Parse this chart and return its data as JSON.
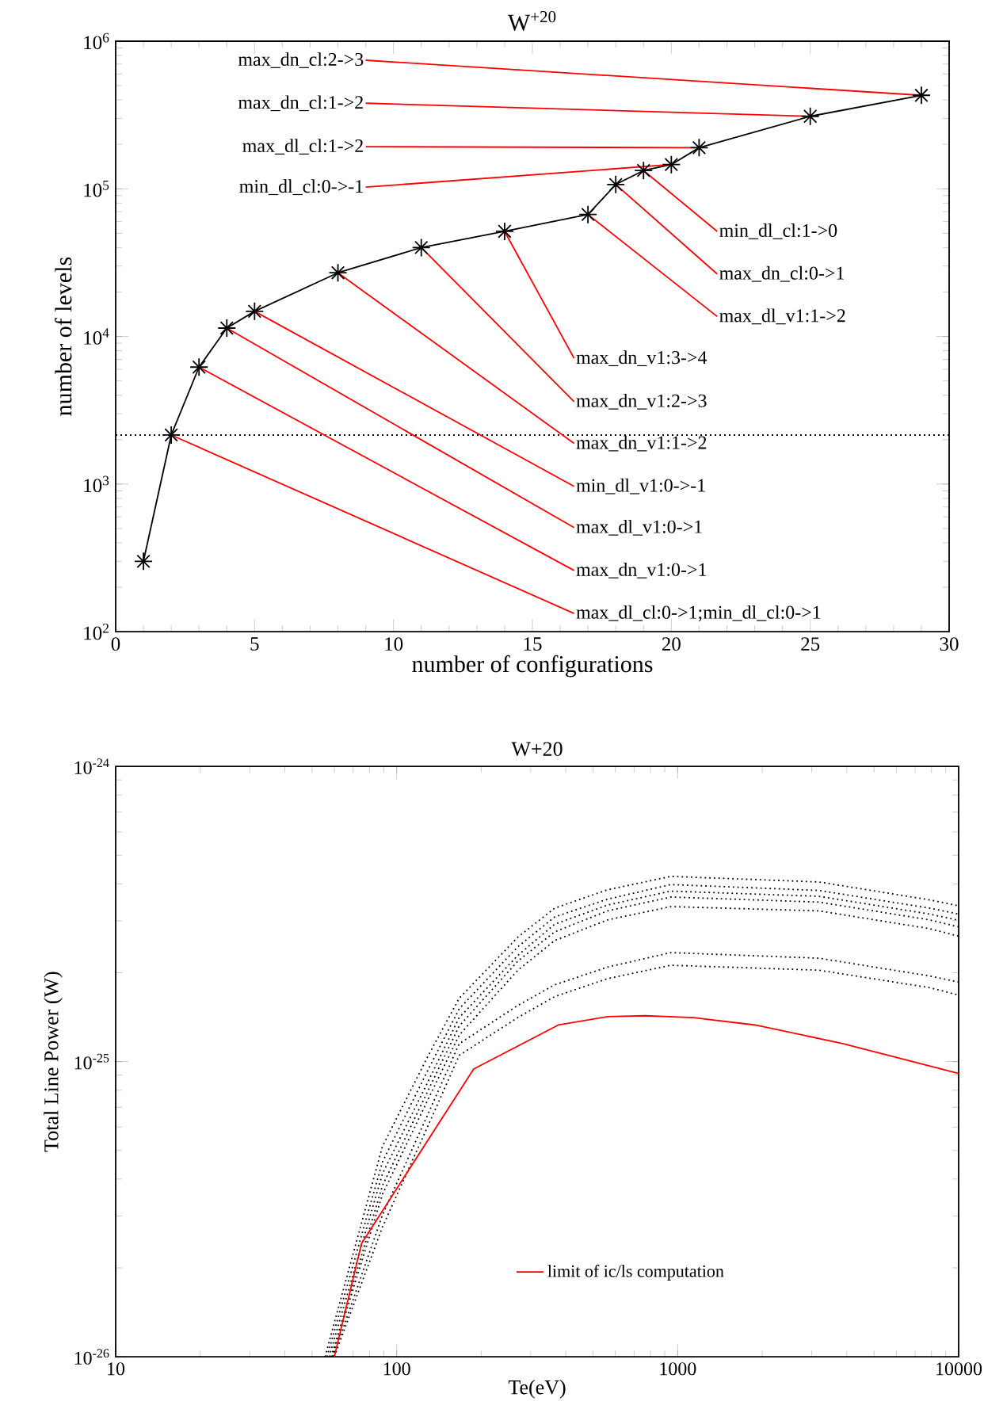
{
  "chart_data": [
    {
      "type": "line",
      "title": "W$^{+20}$",
      "xlabel": "number of configurations",
      "ylabel": "number of levels",
      "log": "y",
      "marker": "cross",
      "line_style": "solid",
      "x": [
        1,
        2,
        3,
        4,
        5,
        8,
        11,
        14,
        17,
        18,
        19,
        20,
        21,
        25,
        29
      ],
      "series": [
        {
          "color": "#000000",
          "values": [
            300,
            2150,
            6200,
            11400,
            14800,
            27000,
            40000,
            51500,
            67000,
            107000,
            133000,
            146000,
            190000,
            310000,
            430000
          ]
        }
      ],
      "xlim": [
        0,
        30
      ],
      "xticks": [
        0,
        5,
        10,
        15,
        20,
        25,
        30
      ],
      "ylim": [
        100,
        1000000
      ],
      "yticks": [
        {
          "value": 100,
          "label": "10$^{2}$"
        },
        {
          "value": 1000,
          "label": "10$^{3}$"
        },
        {
          "value": 10000,
          "label": "10$^{4}$"
        },
        {
          "value": 100000,
          "label": "10$^{5}$"
        },
        {
          "value": 1000000,
          "label": "10$^{6}$"
        }
      ],
      "ref_lines": [
        {
          "axis": "y",
          "value": 2150,
          "color": "#000000",
          "line_style": "dotted"
        }
      ],
      "annotations": [
        {
          "text": "max_dn_cl:2->3",
          "x": 29,
          "y": 430000
        },
        {
          "text": "max_dn_cl:1->2",
          "x": 25,
          "y": 310000
        },
        {
          "text": "max_dl_cl:1->2",
          "x": 21,
          "y": 190000
        },
        {
          "text": "min_dl_cl:0->-1",
          "x": 20,
          "y": 146000
        },
        {
          "text": "min_dl_cl:1->0",
          "x": 19,
          "y": 133000
        },
        {
          "text": "max_dn_cl:0->1",
          "x": 18,
          "y": 107000
        },
        {
          "text": "max_dl_v1:1->2",
          "x": 17,
          "y": 67000
        },
        {
          "text": "max_dn_v1:3->4",
          "x": 14,
          "y": 51500
        },
        {
          "text": "max_dn_v1:2->3",
          "x": 11,
          "y": 40000
        },
        {
          "text": "max_dn_v1:1->2",
          "x": 8,
          "y": 27000
        },
        {
          "text": "min_dl_v1:0->-1",
          "x": 5,
          "y": 14800
        },
        {
          "text": "max_dl_v1:0->1",
          "x": 4,
          "y": 11400
        },
        {
          "text": "max_dn_v1:0->1",
          "x": 3,
          "y": 6200
        },
        {
          "text": "max_dl_cl:0->1;min_dl_cl:0->1",
          "x": 2,
          "y": 2150
        }
      ]
    },
    {
      "type": "line",
      "title": "W+20",
      "xlabel": "Te(eV)",
      "ylabel": "Total Line Power (W)",
      "log": "xy",
      "marker": "none",
      "legend": "bottom",
      "series": [
        {
          "color": "#000000",
          "line_style": "dotted",
          "x": [
            55.6,
            89,
            129,
            167,
            270,
            365,
            563,
            946,
            3184,
            7890,
            10000
          ],
          "values": [
            1e-26,
            5.16e-26,
            1.04e-25,
            1.64e-25,
            2.64e-25,
            3.31e-25,
            3.82e-25,
            4.24e-25,
            4.06e-25,
            3.53e-25,
            3.37e-25
          ]
        },
        {
          "color": "#000000",
          "line_style": "dotted",
          "x": [
            56.5,
            89,
            129,
            167,
            270,
            365,
            563,
            946,
            3184,
            7890,
            10000
          ],
          "values": [
            1e-26,
            4.57e-26,
            9.33e-26,
            1.51e-25,
            2.45e-25,
            3.09e-25,
            3.55e-25,
            3.98e-25,
            3.8e-25,
            3.31e-25,
            3.16e-25
          ]
        },
        {
          "color": "#000000",
          "line_style": "dotted",
          "x": [
            57.5,
            89,
            129,
            167,
            270,
            365,
            563,
            946,
            3184,
            7890,
            10000
          ],
          "values": [
            1e-26,
            4.17e-26,
            8.51e-26,
            1.41e-25,
            2.29e-25,
            2.92e-25,
            3.39e-25,
            3.78e-25,
            3.63e-25,
            3.16e-25,
            3.01e-25
          ]
        },
        {
          "color": "#000000",
          "line_style": "dotted",
          "x": [
            58.5,
            89,
            129,
            167,
            270,
            365,
            563,
            946,
            3184,
            7890,
            10000
          ],
          "values": [
            1e-26,
            3.8e-26,
            7.94e-26,
            1.32e-25,
            2.19e-25,
            2.75e-25,
            3.24e-25,
            3.61e-25,
            3.47e-25,
            3.02e-25,
            2.86e-25
          ]
        },
        {
          "color": "#000000",
          "line_style": "dotted",
          "x": [
            59,
            89,
            129,
            167,
            270,
            365,
            563,
            946,
            3184,
            7890,
            10000
          ],
          "values": [
            1e-26,
            3.55e-26,
            7.41e-26,
            1.23e-25,
            2.04e-25,
            2.57e-25,
            3.02e-25,
            3.35e-25,
            3.24e-25,
            2.82e-25,
            2.66e-25
          ]
        },
        {
          "color": "#000000",
          "line_style": "dotted",
          "x": [
            59.5,
            89,
            129,
            167,
            270,
            365,
            563,
            946,
            3184,
            7890,
            10000
          ],
          "values": [
            1e-26,
            3.02e-26,
            6.61e-26,
            1.15e-25,
            1.55e-25,
            1.82e-25,
            2.09e-25,
            2.34e-25,
            2.24e-25,
            1.95e-25,
            1.86e-25
          ]
        },
        {
          "color": "#000000",
          "line_style": "dotted",
          "x": [
            60,
            89,
            129,
            167,
            270,
            365,
            563,
            946,
            3184,
            7890,
            10000
          ],
          "values": [
            1e-26,
            2.75e-26,
            6.03e-26,
            1.05e-25,
            1.41e-25,
            1.66e-25,
            1.91e-25,
            2.12e-25,
            2.04e-25,
            1.78e-25,
            1.68e-25
          ]
        },
        {
          "name": "limit of ic/ls computation",
          "color": "#ff0000",
          "line_style": "solid",
          "x": [
            60,
            75,
            188,
            376,
            564,
            766,
            1138,
            1888,
            3890,
            10000
          ],
          "values": [
            1e-26,
            2.42e-26,
            9.44e-26,
            1.33e-25,
            1.42e-25,
            1.43e-25,
            1.41e-25,
            1.33e-25,
            1.15e-25,
            9.12e-26
          ]
        }
      ],
      "xlim": [
        10,
        10000
      ],
      "xticks": [
        10,
        100,
        1000,
        10000
      ],
      "ylim": [
        1e-26,
        1e-24
      ],
      "yticks": [
        {
          "value": 1e-26,
          "label": "10$^{-26}$"
        },
        {
          "value": 1e-25,
          "label": "10$^{-25}$"
        },
        {
          "value": 1e-24,
          "label": "10$^{-24}$"
        }
      ]
    }
  ]
}
